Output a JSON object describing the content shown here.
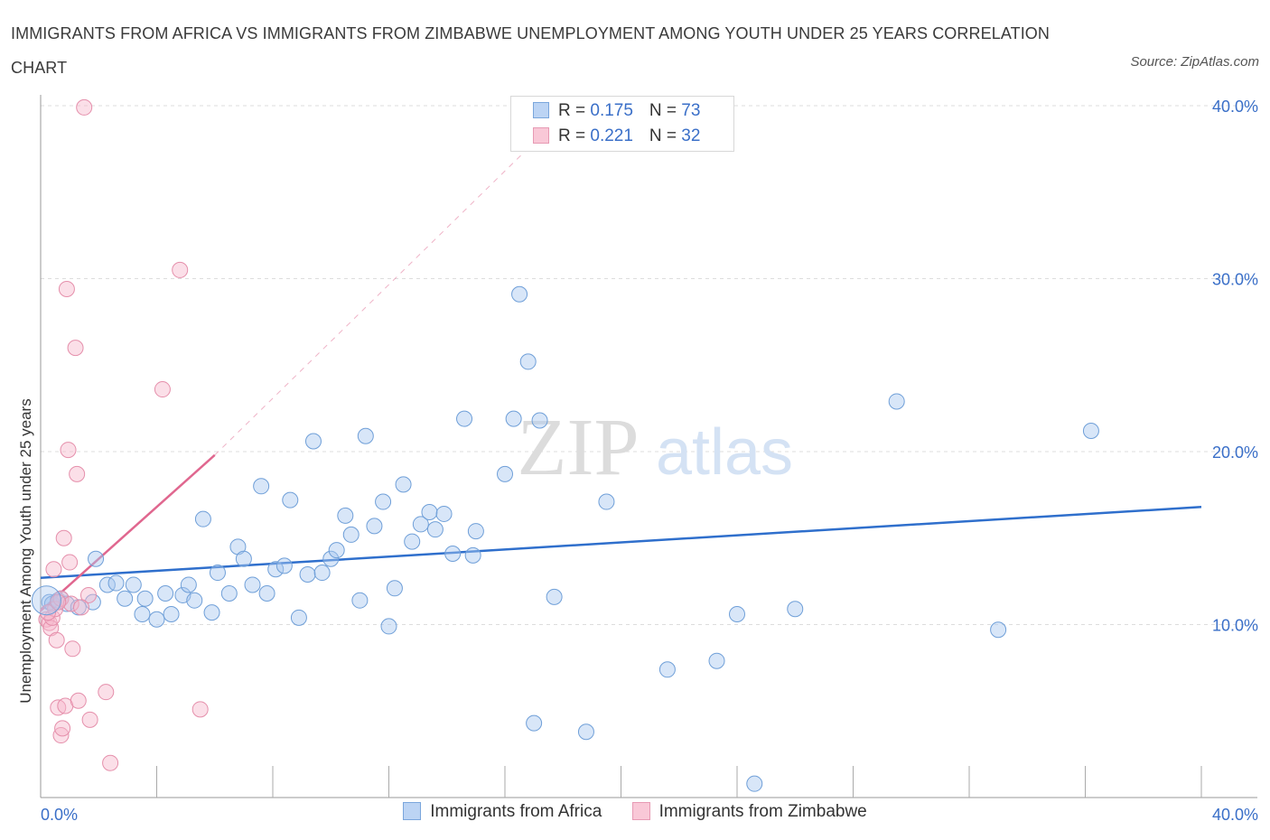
{
  "title": "IMMIGRANTS FROM AFRICA VS IMMIGRANTS FROM ZIMBABWE UNEMPLOYMENT AMONG YOUTH UNDER 25 YEARS CORRELATION CHART",
  "source": "Source: ZipAtlas.com",
  "watermark": {
    "zip": "ZIP",
    "atlas": "atlas"
  },
  "colors": {
    "blue_fill": "#a9c8f0",
    "blue_stroke": "#6f9fd8",
    "blue_line": "#2f6fcc",
    "pink_fill": "#f7b9cc",
    "pink_stroke": "#e58fab",
    "pink_line": "#e0678f",
    "axis_text": "#3a6fc8",
    "grid": "#dddddd"
  },
  "legend_top": [
    {
      "r_label": "R = ",
      "r_value": "0.175",
      "n_label": "N = ",
      "n_value": "73"
    },
    {
      "r_label": "R = ",
      "r_value": "0.221",
      "n_label": "N = ",
      "n_value": "32"
    }
  ],
  "chart_data": {
    "type": "scatter",
    "title": "IMMIGRANTS FROM AFRICA VS IMMIGRANTS FROM ZIMBABWE UNEMPLOYMENT AMONG YOUTH UNDER 25 YEARS CORRELATION CHART",
    "xlabel": "",
    "ylabel": "Unemployment Among Youth under 25 years",
    "xlim": [
      0,
      40
    ],
    "ylim": [
      0,
      40
    ],
    "x_ticks_labels": [
      "0.0%",
      "40.0%"
    ],
    "y_ticks": [
      10,
      20,
      30,
      40
    ],
    "y_tick_labels": [
      "10.0%",
      "20.0%",
      "30.0%",
      "40.0%"
    ],
    "grid": true,
    "series": [
      {
        "name": "Immigrants from Africa",
        "color": "blue",
        "r": 0.175,
        "n": 73,
        "trend": {
          "x": [
            0,
            40
          ],
          "y": [
            12.7,
            16.8
          ],
          "dashed_extension": false
        },
        "points": [
          [
            0.3,
            11.3
          ],
          [
            0.4,
            11.2
          ],
          [
            0.6,
            11.4
          ],
          [
            0.7,
            11.5
          ],
          [
            0.9,
            11.2
          ],
          [
            1.3,
            11.0
          ],
          [
            1.8,
            11.3
          ],
          [
            1.9,
            13.8
          ],
          [
            2.3,
            12.3
          ],
          [
            2.6,
            12.4
          ],
          [
            2.9,
            11.5
          ],
          [
            3.2,
            12.3
          ],
          [
            3.5,
            10.6
          ],
          [
            3.6,
            11.5
          ],
          [
            4.0,
            10.3
          ],
          [
            4.3,
            11.8
          ],
          [
            4.5,
            10.6
          ],
          [
            4.9,
            11.7
          ],
          [
            5.1,
            12.3
          ],
          [
            5.3,
            11.4
          ],
          [
            5.6,
            16.1
          ],
          [
            5.9,
            10.7
          ],
          [
            6.1,
            13.0
          ],
          [
            6.5,
            11.8
          ],
          [
            6.8,
            14.5
          ],
          [
            7.0,
            13.8
          ],
          [
            7.3,
            12.3
          ],
          [
            7.6,
            18.0
          ],
          [
            7.8,
            11.8
          ],
          [
            8.1,
            13.2
          ],
          [
            8.4,
            13.4
          ],
          [
            8.6,
            17.2
          ],
          [
            8.9,
            10.4
          ],
          [
            9.2,
            12.9
          ],
          [
            9.4,
            20.6
          ],
          [
            9.7,
            13.0
          ],
          [
            10.0,
            13.8
          ],
          [
            10.2,
            14.3
          ],
          [
            10.5,
            16.3
          ],
          [
            10.7,
            15.2
          ],
          [
            11.0,
            11.4
          ],
          [
            11.2,
            20.9
          ],
          [
            11.5,
            15.7
          ],
          [
            11.8,
            17.1
          ],
          [
            12.0,
            9.9
          ],
          [
            12.2,
            12.1
          ],
          [
            12.5,
            18.1
          ],
          [
            12.8,
            14.8
          ],
          [
            13.1,
            15.8
          ],
          [
            13.4,
            16.5
          ],
          [
            13.6,
            15.5
          ],
          [
            13.9,
            16.4
          ],
          [
            14.2,
            14.1
          ],
          [
            14.6,
            21.9
          ],
          [
            14.9,
            14.0
          ],
          [
            15.0,
            15.4
          ],
          [
            16.0,
            18.7
          ],
          [
            16.3,
            21.9
          ],
          [
            16.5,
            29.1
          ],
          [
            16.8,
            25.2
          ],
          [
            17.0,
            4.3
          ],
          [
            17.2,
            21.8
          ],
          [
            17.7,
            11.6
          ],
          [
            18.8,
            3.8
          ],
          [
            19.5,
            17.1
          ],
          [
            21.6,
            7.4
          ],
          [
            23.3,
            7.9
          ],
          [
            24.0,
            10.6
          ],
          [
            24.6,
            0.8
          ],
          [
            26.0,
            10.9
          ],
          [
            29.5,
            22.9
          ],
          [
            33.0,
            9.7
          ],
          [
            36.2,
            21.2
          ]
        ]
      },
      {
        "name": "Immigrants from Zimbabwe",
        "color": "pink",
        "r": 0.221,
        "n": 32,
        "trend": {
          "x": [
            0,
            6.0
          ],
          "y": [
            10.8,
            19.8
          ],
          "dashed_extension": true,
          "dash_to": [
            18.3,
            40
          ]
        },
        "points": [
          [
            0.2,
            10.3
          ],
          [
            0.3,
            10.1
          ],
          [
            0.35,
            9.8
          ],
          [
            0.4,
            10.4
          ],
          [
            0.45,
            13.2
          ],
          [
            0.5,
            10.9
          ],
          [
            0.55,
            9.1
          ],
          [
            0.6,
            5.2
          ],
          [
            0.7,
            11.5
          ],
          [
            0.7,
            3.6
          ],
          [
            0.75,
            4.0
          ],
          [
            0.8,
            15.0
          ],
          [
            0.85,
            5.3
          ],
          [
            0.9,
            29.4
          ],
          [
            0.95,
            20.1
          ],
          [
            1.0,
            13.6
          ],
          [
            1.05,
            11.2
          ],
          [
            1.1,
            8.6
          ],
          [
            1.2,
            26.0
          ],
          [
            1.25,
            18.7
          ],
          [
            1.3,
            5.6
          ],
          [
            1.5,
            39.9
          ],
          [
            1.65,
            11.7
          ],
          [
            1.7,
            4.5
          ],
          [
            2.25,
            6.1
          ],
          [
            2.4,
            2.0
          ],
          [
            4.2,
            23.6
          ],
          [
            4.8,
            30.5
          ],
          [
            5.5,
            5.1
          ],
          [
            0.25,
            10.7
          ],
          [
            0.6,
            11.3
          ],
          [
            1.4,
            11.0
          ]
        ]
      }
    ]
  },
  "legend_bottom": [
    {
      "label": "Immigrants from Africa",
      "color": "blue"
    },
    {
      "label": "Immigrants from Zimbabwe",
      "color": "pink"
    }
  ]
}
